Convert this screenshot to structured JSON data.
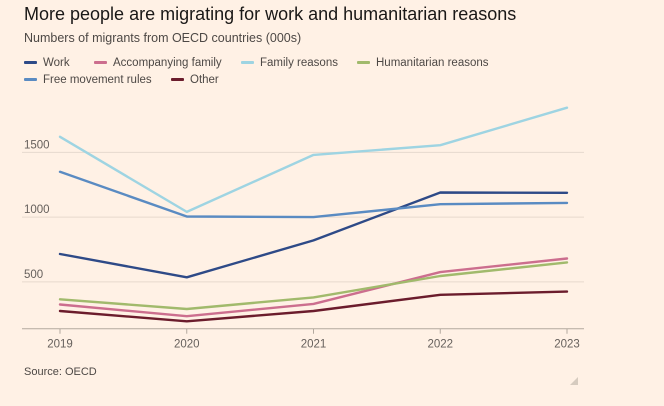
{
  "chart_data": {
    "type": "line",
    "title": "More people are migrating for work and humanitarian reasons",
    "subtitle": "Numbers of migrants from OECD countries (000s)",
    "source": "Source: OECD",
    "x": [
      "2019",
      "2020",
      "2021",
      "2022",
      "2023"
    ],
    "y_ticks": [
      500,
      1000,
      1500
    ],
    "ylim": [
      220,
      1900
    ],
    "grid": "horizontal",
    "legend_position": "top-left",
    "series": [
      {
        "name": "Work",
        "color": "#2e4a87",
        "values": [
          715,
          535,
          820,
          1190,
          1188
        ]
      },
      {
        "name": "Accompanying family",
        "color": "#cc6e8e",
        "values": [
          325,
          235,
          330,
          575,
          680
        ]
      },
      {
        "name": "Family reasons",
        "color": "#9ed4e2",
        "values": [
          1620,
          1040,
          1480,
          1555,
          1845
        ]
      },
      {
        "name": "Humanitarian reasons",
        "color": "#a1ba6c",
        "values": [
          365,
          290,
          380,
          545,
          650
        ]
      },
      {
        "name": "Free movement rules",
        "color": "#5a8bc2",
        "values": [
          1350,
          1005,
          1000,
          1100,
          1110
        ]
      },
      {
        "name": "Other",
        "color": "#6b1c2c",
        "values": [
          275,
          195,
          275,
          400,
          425
        ]
      }
    ]
  }
}
